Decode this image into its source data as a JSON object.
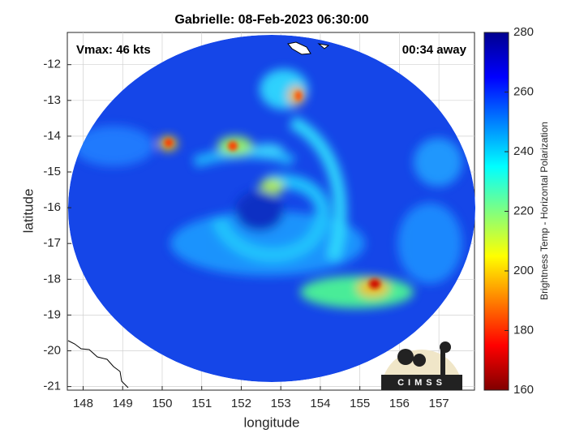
{
  "chart_data": {
    "type": "image",
    "title": "Gabrielle: 08-Feb-2023 06:30:00",
    "xlabel": "longitude",
    "ylabel": "latitude",
    "annotations": [
      "Vmax: 46 kts",
      "00:34 away"
    ],
    "logo": "CIMSS",
    "xlim": [
      147.6,
      157.9
    ],
    "xticks": [
      148,
      149,
      150,
      151,
      152,
      153,
      154,
      155,
      156,
      157
    ],
    "ylim": [
      -21.1,
      -11.1
    ],
    "yticks": [
      -21,
      -20,
      -19,
      -18,
      -17,
      -16,
      -15,
      -14,
      -13,
      -12
    ],
    "grid": true,
    "colorbar": {
      "label": "Brightness Temp - Horizontal Polarization",
      "lim": [
        160,
        280
      ],
      "ticks": [
        160,
        180,
        200,
        220,
        240,
        260,
        280
      ]
    }
  }
}
